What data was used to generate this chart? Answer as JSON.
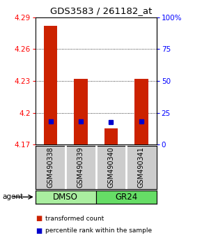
{
  "title": "GDS3583 / 261182_at",
  "samples": [
    "GSM490338",
    "GSM490339",
    "GSM490340",
    "GSM490341"
  ],
  "bar_bottom": 4.17,
  "red_tops": [
    4.282,
    4.232,
    4.185,
    4.232
  ],
  "blue_values": [
    4.192,
    4.192,
    4.191,
    4.192
  ],
  "ylim_left": [
    4.17,
    4.29
  ],
  "yticks_left": [
    4.17,
    4.2,
    4.23,
    4.26,
    4.29
  ],
  "ylim_right": [
    0,
    100
  ],
  "yticks_right": [
    0,
    25,
    50,
    75,
    100
  ],
  "ytick_labels_right": [
    "0",
    "25",
    "50",
    "75",
    "100%"
  ],
  "bar_color": "#CC2200",
  "dot_color": "#0000CC",
  "bg_color": "#FFFFFF",
  "group_label_dmso": "DMSO",
  "group_label_gr24": "GR24",
  "dmso_color": "#AAEEA0",
  "gr24_color": "#66DD66",
  "sample_box_color": "#CCCCCC",
  "legend_red": "transformed count",
  "legend_blue": "percentile rank within the sample",
  "bar_width": 0.45
}
